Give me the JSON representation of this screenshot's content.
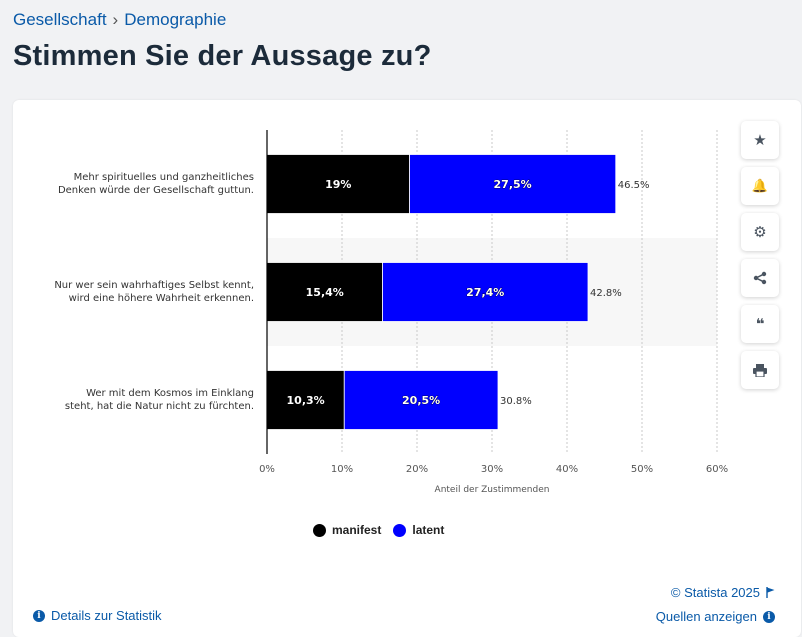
{
  "breadcrumb": {
    "items": [
      "Gesellschaft",
      "Demographie"
    ],
    "separator": "›"
  },
  "page_title": "Stimmen Sie der Aussage zu?",
  "toolbar": {
    "buttons": [
      {
        "name": "favorite",
        "icon": "star-icon",
        "glyph": "★"
      },
      {
        "name": "notification",
        "icon": "bell-icon",
        "glyph": "🔔"
      },
      {
        "name": "settings",
        "icon": "gear-icon",
        "glyph": "⚙"
      },
      {
        "name": "share",
        "icon": "share-icon",
        "glyph": "⋖"
      },
      {
        "name": "cite",
        "icon": "quote-icon",
        "glyph": "❝"
      },
      {
        "name": "print",
        "icon": "printer-icon",
        "glyph": "⎙"
      }
    ]
  },
  "footer": {
    "copyright": "© Statista 2025",
    "details": "Details zur Statistik",
    "sources": "Quellen anzeigen"
  },
  "colors": {
    "manifest": "#000000",
    "latent": "#0000ff",
    "link": "#0a5aa8"
  },
  "chart_data": {
    "type": "bar",
    "orientation": "horizontal",
    "stacked": true,
    "categories": [
      [
        "Mehr spirituelles und ganzheitliches",
        "Denken würde der Gesellschaft guttun."
      ],
      [
        "Nur wer sein wahrhaftiges Selbst kennt,",
        "wird eine höhere Wahrheit erkennen."
      ],
      [
        "Wer mit dem Kosmos im Einklang",
        "steht, hat die Natur nicht zu fürchten."
      ]
    ],
    "series": [
      {
        "name": "manifest",
        "color": "#000000",
        "values": [
          19,
          15.4,
          10.3
        ],
        "labels": [
          "19%",
          "15,4%",
          "10,3%"
        ]
      },
      {
        "name": "latent",
        "color": "#0000ff",
        "values": [
          27.5,
          27.4,
          20.5
        ],
        "labels": [
          "27,5%",
          "27,4%",
          "20,5%"
        ]
      }
    ],
    "totals": [
      "46.5%",
      "42.8%",
      "30.8%"
    ],
    "xlabel": "Anteil der Zustimmenden",
    "xlim": [
      0,
      60
    ],
    "xticks": [
      "0%",
      "10%",
      "20%",
      "30%",
      "40%",
      "50%",
      "60%"
    ],
    "grid": true,
    "legend_position": "bottom"
  }
}
